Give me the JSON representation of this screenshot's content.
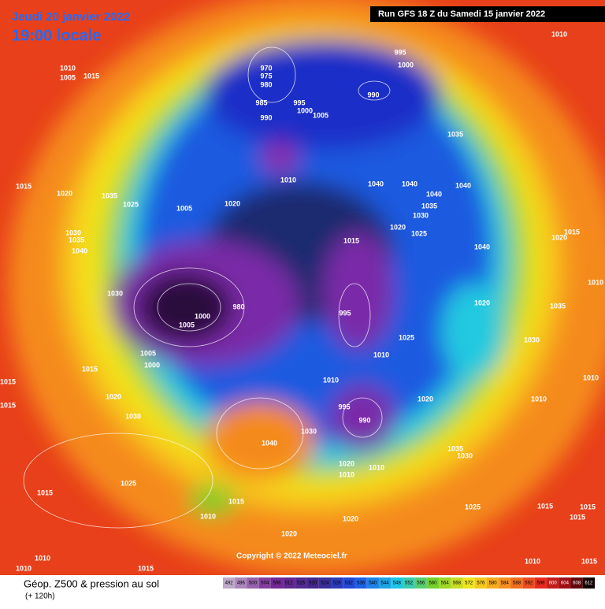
{
  "header": {
    "date": "Jeudi 20 janvier 2022",
    "time": "19:00 locale",
    "run": "Run GFS 18 Z du Samedi 15 janvier 2022"
  },
  "footer": {
    "title": "Géop. Z500 & pression au sol",
    "lead": "(+ 120h)"
  },
  "copyright": "Copyright © 2022 Meteociel.fr",
  "scale": {
    "values": [
      492,
      496,
      500,
      504,
      508,
      512,
      516,
      520,
      524,
      528,
      532,
      536,
      540,
      544,
      548,
      552,
      556,
      560,
      564,
      568,
      572,
      576,
      580,
      584,
      588,
      592,
      596,
      600,
      604,
      608,
      612
    ]
  },
  "isobar_labels": [
    "1010",
    "995",
    "1000",
    "970",
    "975",
    "980",
    "1010",
    "1005",
    "1015",
    "990",
    "985",
    "995",
    "1000",
    "1005",
    "990",
    "1035",
    "1015",
    "1020",
    "1035",
    "1025",
    "1005",
    "1020",
    "1010",
    "1040",
    "1040",
    "1040",
    "1040",
    "1035",
    "1030",
    "1020",
    "1025",
    "1015",
    "1030",
    "1035",
    "1040",
    "1030",
    "1040",
    "1020",
    "1015",
    "1010",
    "1020",
    "1035",
    "1005",
    "1000",
    "980",
    "995",
    "1025",
    "1030",
    "1005",
    "1000",
    "1015",
    "1010",
    "1010",
    "1020",
    "1030",
    "995",
    "990",
    "1020",
    "1010",
    "1040",
    "1030",
    "1035",
    "1030",
    "1020",
    "1010",
    "1010",
    "1025",
    "1015",
    "1015",
    "1010",
    "1020",
    "1025",
    "1015",
    "1015",
    "1015",
    "1020",
    "1010",
    "1010",
    "1015",
    "1010",
    "1015",
    "1015",
    "1015",
    "1010"
  ]
}
